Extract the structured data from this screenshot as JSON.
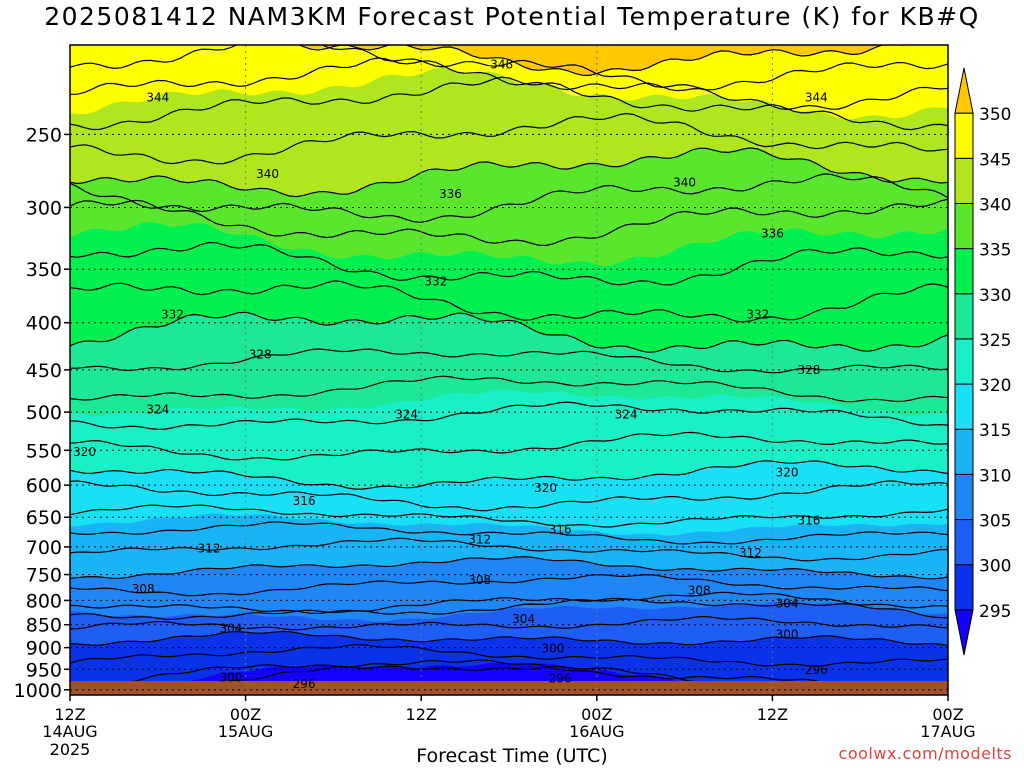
{
  "title": "2025081412 NAM3KM Forecast Potential Temperature (K) for KB#Q",
  "xlabel": "Forecast Time (UTC)",
  "credit": "coolwx.com/modelts",
  "chart_data": {
    "type": "heatmap",
    "title": "2025081412 NAM3KM Forecast Potential Temperature (K) for KB#Q",
    "xlabel": "Forecast Time (UTC)",
    "ylabel": "",
    "x_ticks": [
      {
        "hour": 0,
        "label": "12Z",
        "sub": "14AUG",
        "sub2": "2025"
      },
      {
        "hour": 12,
        "label": "00Z",
        "sub": "15AUG",
        "sub2": ""
      },
      {
        "hour": 24,
        "label": "12Z",
        "sub": "",
        "sub2": ""
      },
      {
        "hour": 36,
        "label": "00Z",
        "sub": "16AUG",
        "sub2": ""
      },
      {
        "hour": 48,
        "label": "12Z",
        "sub": "",
        "sub2": ""
      },
      {
        "hour": 60,
        "label": "00Z",
        "sub": "17AUG",
        "sub2": ""
      }
    ],
    "xlim": [
      0,
      60
    ],
    "y_ticks": [
      "250",
      "300",
      "350",
      "400",
      "450",
      "500",
      "550",
      "600",
      "650",
      "700",
      "750",
      "800",
      "850",
      "900",
      "950",
      "1000"
    ],
    "ylim": [
      1013,
      200
    ],
    "surface_pressure": 1013,
    "colorbar": {
      "levels": [
        295,
        300,
        305,
        310,
        315,
        320,
        325,
        330,
        335,
        340,
        345,
        350
      ],
      "colors": [
        "#1400ff",
        "#0a32e8",
        "#1e5ef5",
        "#1e87f5",
        "#19b4f5",
        "#19e1f5",
        "#1af0c8",
        "#1ce896",
        "#00f050",
        "#5ae62d",
        "#afe61e",
        "#ffff00",
        "#ffc800"
      ]
    },
    "contour_labels": [
      {
        "value": 348,
        "hour": 29.5,
        "p": 210
      },
      {
        "value": 344,
        "hour": 6.0,
        "p": 228
      },
      {
        "value": 344,
        "hour": 51.0,
        "p": 228
      },
      {
        "value": 340,
        "hour": 13.5,
        "p": 276
      },
      {
        "value": 340,
        "hour": 42.0,
        "p": 282
      },
      {
        "value": 336,
        "hour": 26.0,
        "p": 290
      },
      {
        "value": 336,
        "hour": 48.0,
        "p": 320
      },
      {
        "value": 332,
        "hour": 7.0,
        "p": 392
      },
      {
        "value": 332,
        "hour": 25.0,
        "p": 361
      },
      {
        "value": 332,
        "hour": 47.0,
        "p": 392
      },
      {
        "value": 328,
        "hour": 13.0,
        "p": 433
      },
      {
        "value": 328,
        "hour": 50.5,
        "p": 450
      },
      {
        "value": 324,
        "hour": 6.0,
        "p": 497
      },
      {
        "value": 324,
        "hour": 23.0,
        "p": 503
      },
      {
        "value": 324,
        "hour": 38.0,
        "p": 503
      },
      {
        "value": 320,
        "hour": 1.0,
        "p": 552
      },
      {
        "value": 320,
        "hour": 32.5,
        "p": 604
      },
      {
        "value": 320,
        "hour": 49.0,
        "p": 581
      },
      {
        "value": 316,
        "hour": 16.0,
        "p": 624
      },
      {
        "value": 316,
        "hour": 33.5,
        "p": 670
      },
      {
        "value": 316,
        "hour": 50.5,
        "p": 655
      },
      {
        "value": 312,
        "hour": 9.5,
        "p": 703
      },
      {
        "value": 312,
        "hour": 28.0,
        "p": 687
      },
      {
        "value": 312,
        "hour": 46.5,
        "p": 711
      },
      {
        "value": 308,
        "hour": 5.0,
        "p": 778
      },
      {
        "value": 308,
        "hour": 28.0,
        "p": 760
      },
      {
        "value": 308,
        "hour": 43.0,
        "p": 780
      },
      {
        "value": 304,
        "hour": 11.0,
        "p": 858
      },
      {
        "value": 304,
        "hour": 31.0,
        "p": 838
      },
      {
        "value": 304,
        "hour": 49.0,
        "p": 806
      },
      {
        "value": 300,
        "hour": 11.0,
        "p": 970
      },
      {
        "value": 300,
        "hour": 33.0,
        "p": 902
      },
      {
        "value": 300,
        "hour": 49.0,
        "p": 871
      },
      {
        "value": 296,
        "hour": 16.0,
        "p": 985
      },
      {
        "value": 296,
        "hour": 33.5,
        "p": 972
      },
      {
        "value": 296,
        "hour": 51.0,
        "p": 952
      }
    ]
  }
}
